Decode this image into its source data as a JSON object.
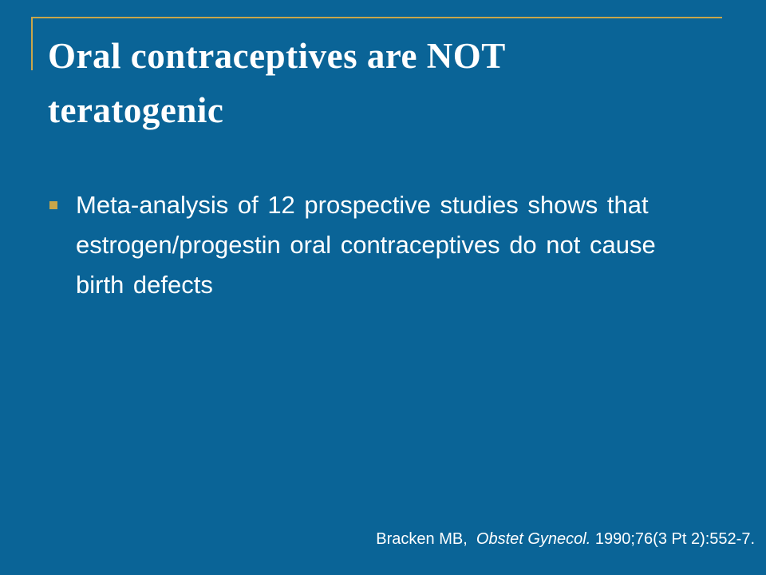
{
  "slide": {
    "title": "Oral contraceptives are NOT teratogenic",
    "bullets": [
      "Meta-analysis of 12 prospective studies shows that estrogen/progestin oral contraceptives do not cause birth defects"
    ],
    "citation": {
      "authors": "Bracken MB,",
      "journal": "Obstet Gynecol.",
      "details": "1990;76(3 Pt 2):552-7."
    }
  }
}
